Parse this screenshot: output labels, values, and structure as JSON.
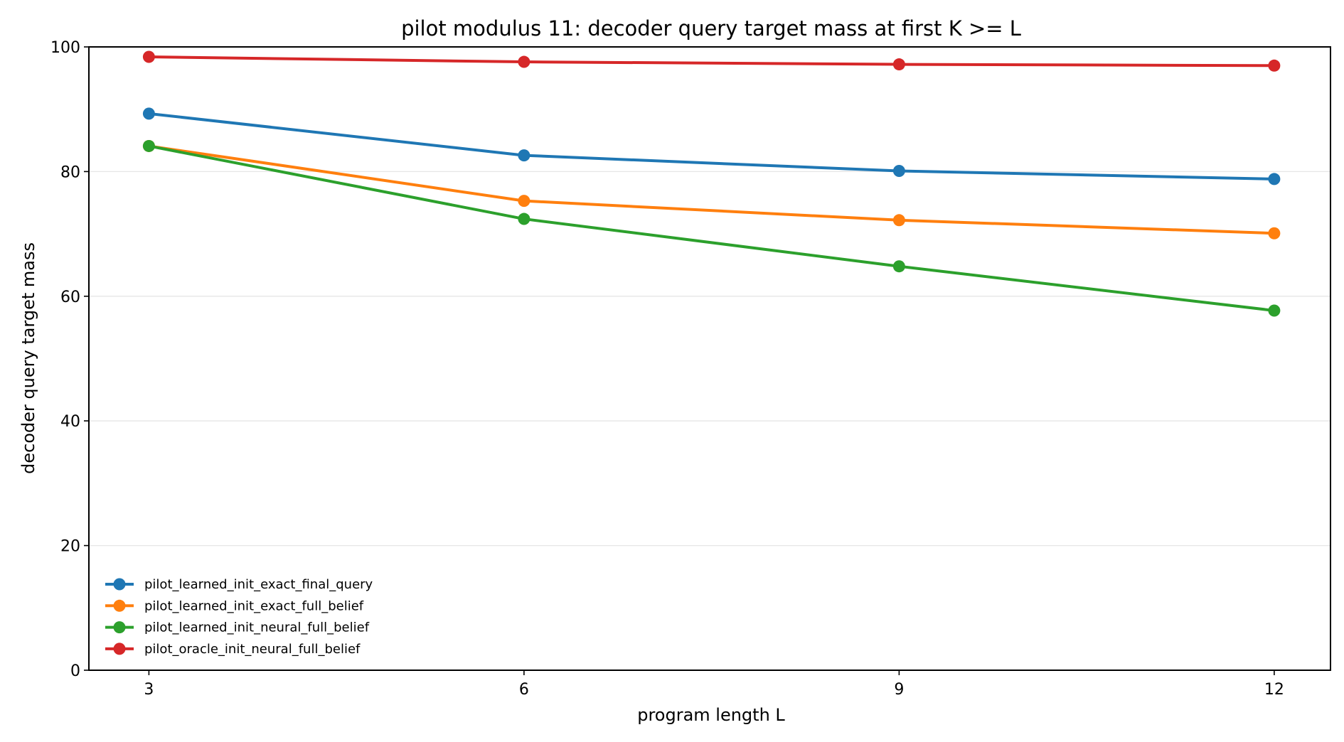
{
  "chart_data": {
    "type": "line",
    "title": "pilot modulus 11: decoder query target mass at first K >= L",
    "xlabel": "program length L",
    "ylabel": "decoder query target mass",
    "x": [
      3,
      6,
      9,
      12
    ],
    "x_ticks": [
      "3",
      "6",
      "9",
      "12"
    ],
    "xlim": [
      2.52,
      12.45
    ],
    "ylim": [
      0,
      100
    ],
    "y_ticks": [
      "0",
      "20",
      "40",
      "60",
      "80",
      "100"
    ],
    "grid": "horizontal",
    "legend_position": "lower-left",
    "series": [
      {
        "name": "pilot_learned_init_exact_final_query",
        "color": "#1f77b4",
        "values": [
          89.3,
          82.6,
          80.1,
          78.8
        ]
      },
      {
        "name": "pilot_learned_init_exact_full_belief",
        "color": "#ff7f0e",
        "values": [
          84.1,
          75.3,
          72.2,
          70.1
        ]
      },
      {
        "name": "pilot_learned_init_neural_full_belief",
        "color": "#2ca02c",
        "values": [
          84.1,
          72.4,
          64.8,
          57.7
        ]
      },
      {
        "name": "pilot_oracle_init_neural_full_belief",
        "color": "#d62728",
        "values": [
          98.4,
          97.6,
          97.2,
          97.0
        ]
      }
    ]
  }
}
